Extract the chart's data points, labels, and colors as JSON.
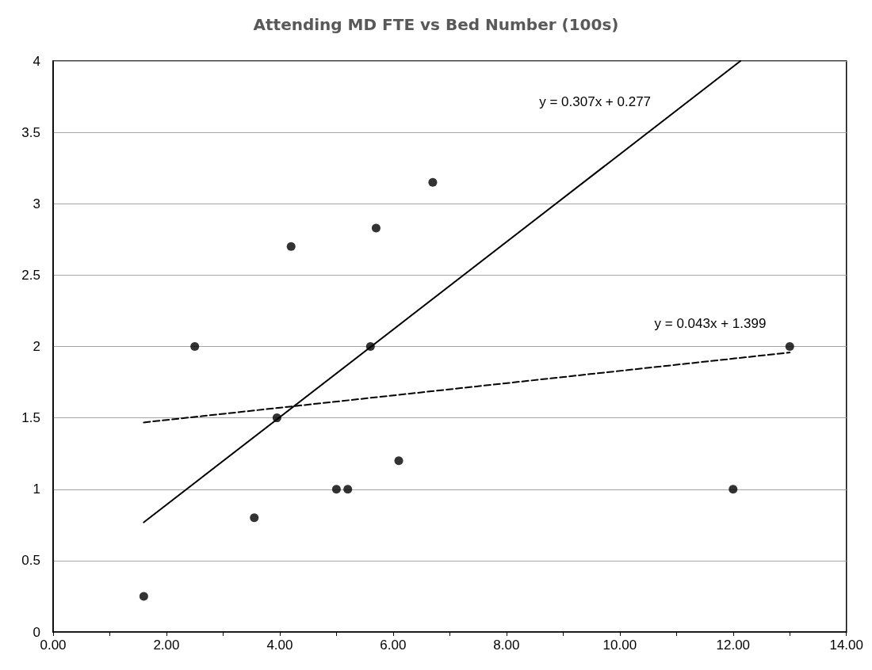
{
  "chart_data": {
    "type": "scatter",
    "title": "Attending MD FTE vs Bed Number (100s)",
    "series": [
      {
        "color": "#000000",
        "x": [
          1.6,
          2.5,
          3.55,
          3.95,
          4.2,
          5.0,
          5.2,
          5.6,
          5.7,
          6.1,
          6.7
        ],
        "values": [
          0.25,
          2.0,
          0.8,
          1.5,
          2.7,
          1.0,
          1.0,
          2.0,
          2.83,
          1.2,
          3.15
        ]
      },
      {
        "color": "#000000",
        "x": [
          12,
          13
        ],
        "values": [
          1.0,
          2.0
        ]
      },
      {
        "type": "line",
        "color": "#000000",
        "line_style": "solid",
        "marker": "none",
        "x": [
          1.6,
          12.13
        ],
        "values": [
          0.768,
          4.0
        ]
      },
      {
        "type": "line",
        "color": "#000000",
        "line_style": "dashed",
        "marker": "none",
        "x": [
          1.6,
          13
        ],
        "values": [
          1.468,
          1.958
        ]
      }
    ],
    "marker": "circle",
    "annotations": [
      "y = 0.307x + 0.277",
      "y = 0.043x + 1.399"
    ],
    "xlim": [
      0,
      14
    ],
    "xticks": [
      {
        "value": 0,
        "label": "0.00"
      },
      {
        "value": 1,
        "label": null
      },
      {
        "value": 2,
        "label": "2.00"
      },
      {
        "value": 3,
        "label": null
      },
      {
        "value": 4,
        "label": "4.00"
      },
      {
        "value": 5,
        "label": null
      },
      {
        "value": 6,
        "label": "6.00"
      },
      {
        "value": 7,
        "label": null
      },
      {
        "value": 8,
        "label": "8.00"
      },
      {
        "value": 9,
        "label": null
      },
      {
        "value": 10,
        "label": "10.00"
      },
      {
        "value": 11,
        "label": null
      },
      {
        "value": 12,
        "label": "12.00"
      },
      {
        "value": 13,
        "label": null
      },
      {
        "value": 14,
        "label": "14.00"
      }
    ],
    "ylim": [
      0,
      4
    ],
    "yticks": [
      0,
      0.5,
      1,
      1.5,
      2,
      2.5,
      3,
      3.5,
      4
    ],
    "grid": "y"
  }
}
